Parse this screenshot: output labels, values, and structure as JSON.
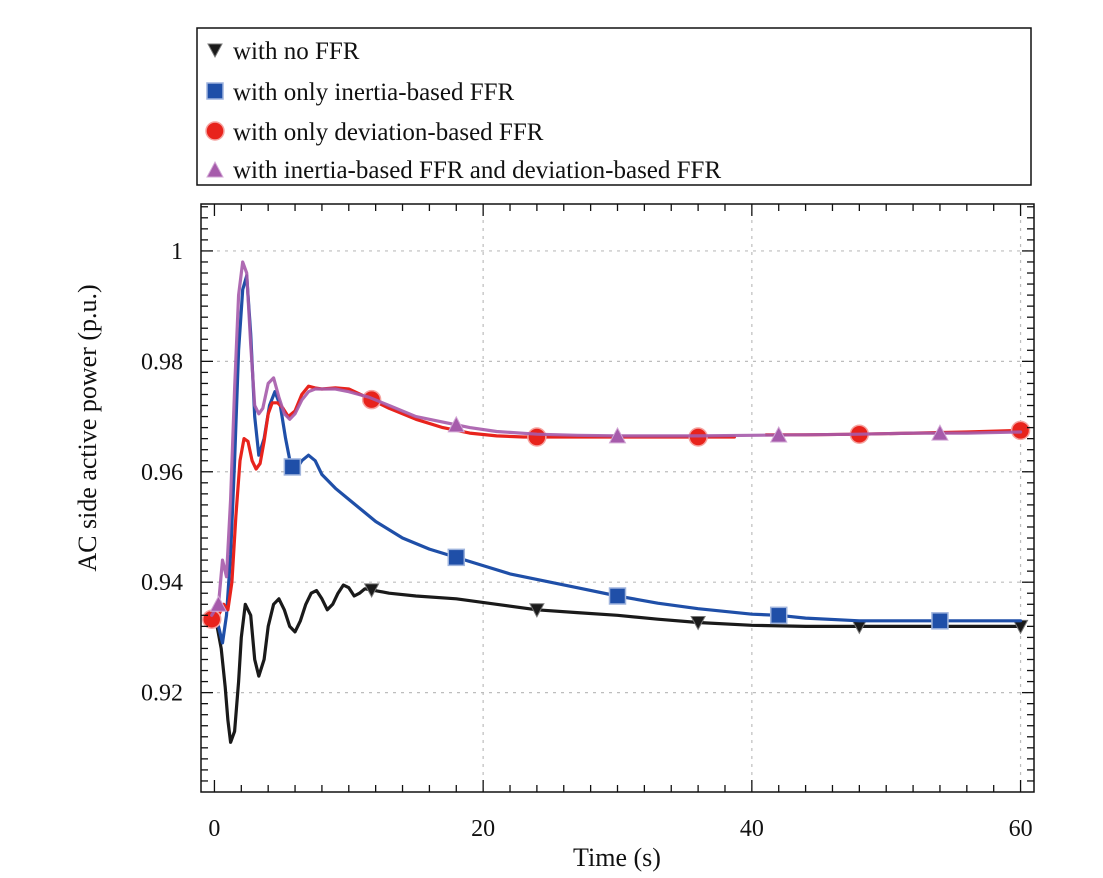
{
  "chart_data": {
    "type": "line",
    "xlabel": "Time (s)",
    "ylabel": "AC side active power (p.u.)",
    "xlim": [
      -1,
      61
    ],
    "ylim": [
      0.902,
      1.0085
    ],
    "x_ticks": [
      0,
      20,
      40,
      60
    ],
    "x_tick_labels": [
      "0",
      "20",
      "40",
      "60"
    ],
    "y_ticks": [
      0.92,
      0.94,
      0.96,
      0.98,
      1.0
    ],
    "y_tick_labels": [
      "0.92",
      "0.94",
      "0.96",
      "0.98",
      "1"
    ],
    "grid": true,
    "legend_position": "top",
    "series": [
      {
        "name": "with no FFR",
        "color": "#1a1a1a",
        "marker": "triangle-down",
        "x": [
          -0.2,
          0.2,
          0.5,
          0.8,
          1.0,
          1.2,
          1.5,
          1.8,
          2.0,
          2.3,
          2.7,
          3.0,
          3.3,
          3.7,
          4.0,
          4.4,
          4.8,
          5.2,
          5.6,
          6.0,
          6.4,
          6.8,
          7.2,
          7.6,
          8.0,
          8.4,
          8.8,
          9.2,
          9.6,
          10.0,
          10.4,
          10.8,
          11.2,
          11.7,
          13,
          15,
          18,
          21,
          24,
          27,
          30,
          33,
          36,
          40,
          44,
          48,
          52,
          56,
          60
        ],
        "y": [
          0.933,
          0.932,
          0.928,
          0.921,
          0.915,
          0.911,
          0.913,
          0.922,
          0.93,
          0.936,
          0.934,
          0.926,
          0.923,
          0.926,
          0.932,
          0.936,
          0.937,
          0.935,
          0.932,
          0.931,
          0.933,
          0.936,
          0.938,
          0.9385,
          0.937,
          0.935,
          0.936,
          0.938,
          0.9395,
          0.939,
          0.9375,
          0.938,
          0.9388,
          0.9386,
          0.938,
          0.9375,
          0.937,
          0.936,
          0.935,
          0.9345,
          0.934,
          0.9333,
          0.9327,
          0.9322,
          0.932,
          0.932,
          0.932,
          0.932,
          0.932
        ],
        "markers_at": [
          11.7,
          24,
          36,
          48,
          60
        ]
      },
      {
        "name": "with only inertia-based FFR",
        "color": "#1f4fa8",
        "marker": "square",
        "x": [
          -0.2,
          0.3,
          0.6,
          0.9,
          1.2,
          1.5,
          1.8,
          2.1,
          2.4,
          2.7,
          3.0,
          3.3,
          3.7,
          4.1,
          4.5,
          4.9,
          5.3,
          5.7,
          6.1,
          6.5,
          7.0,
          7.5,
          8.0,
          9,
          10,
          11,
          12,
          14,
          16,
          18,
          20,
          22,
          24,
          27,
          30,
          33,
          36,
          40,
          42,
          44,
          48,
          52,
          56,
          60
        ],
        "y": [
          0.933,
          0.932,
          0.929,
          0.934,
          0.945,
          0.962,
          0.982,
          0.993,
          0.9955,
          0.985,
          0.97,
          0.963,
          0.966,
          0.972,
          0.9745,
          0.972,
          0.966,
          0.961,
          0.9605,
          0.962,
          0.963,
          0.962,
          0.9595,
          0.957,
          0.955,
          0.953,
          0.951,
          0.948,
          0.946,
          0.9445,
          0.943,
          0.9415,
          0.9405,
          0.939,
          0.9375,
          0.9362,
          0.9352,
          0.9342,
          0.934,
          0.9335,
          0.933,
          0.933,
          0.933,
          0.933
        ],
        "markers_at": [
          5.8,
          18,
          30,
          42,
          54
        ]
      },
      {
        "name": "with only deviation-based FFR",
        "color": "#e8231c",
        "marker": "circle",
        "x": [
          -0.2,
          0.3,
          0.7,
          1.0,
          1.3,
          1.6,
          1.9,
          2.2,
          2.5,
          2.8,
          3.1,
          3.4,
          3.7,
          4.0,
          4.3,
          4.7,
          5.1,
          5.5,
          6.0,
          6.5,
          7.0,
          7.5,
          8,
          9,
          10,
          11.5,
          13,
          15,
          17,
          19,
          21,
          23,
          24,
          26,
          28,
          30,
          33,
          36,
          38.7
        ],
        "y": [
          0.9333,
          0.934,
          0.936,
          0.935,
          0.94,
          0.952,
          0.962,
          0.966,
          0.9655,
          0.962,
          0.9605,
          0.9615,
          0.9655,
          0.9705,
          0.9725,
          0.9725,
          0.9715,
          0.97,
          0.971,
          0.974,
          0.9755,
          0.9752,
          0.975,
          0.9752,
          0.975,
          0.9733,
          0.9715,
          0.9695,
          0.968,
          0.967,
          0.9665,
          0.9663,
          0.9663,
          0.9663,
          0.9663,
          0.9663,
          0.9663,
          0.9663,
          0.9663
        ],
        "markers_at": [
          -0.2,
          11.7,
          24,
          36
        ],
        "x2": [
          41,
          44,
          48,
          52,
          56,
          60
        ],
        "y2": [
          0.9667,
          0.9667,
          0.9668,
          0.967,
          0.9672,
          0.9675
        ],
        "markers_at2": [
          48,
          60
        ]
      },
      {
        "name": "with inertia-based FFR and deviation-based FFR",
        "color": "#a65bab",
        "marker": "triangle-up",
        "x": [
          -0.2,
          0.3,
          0.6,
          0.9,
          1.2,
          1.5,
          1.8,
          2.1,
          2.4,
          2.7,
          3.0,
          3.3,
          3.6,
          4.0,
          4.4,
          4.8,
          5.2,
          5.6,
          6.0,
          6.5,
          7.0,
          7.5,
          8,
          9,
          10,
          11.5,
          13,
          15,
          17,
          19,
          21,
          24,
          27,
          30,
          33,
          36,
          40,
          44,
          48,
          52,
          56,
          60
        ],
        "y": [
          0.934,
          0.936,
          0.944,
          0.941,
          0.955,
          0.975,
          0.992,
          0.998,
          0.996,
          0.983,
          0.972,
          0.9705,
          0.9715,
          0.976,
          0.977,
          0.9735,
          0.9705,
          0.9695,
          0.9705,
          0.973,
          0.9745,
          0.975,
          0.975,
          0.975,
          0.9745,
          0.9735,
          0.972,
          0.97,
          0.969,
          0.968,
          0.9673,
          0.9668,
          0.9666,
          0.9665,
          0.9665,
          0.9665,
          0.9666,
          0.9667,
          0.9668,
          0.967,
          0.967,
          0.9672
        ],
        "markers_at": [
          0.3,
          18,
          30,
          42,
          54
        ]
      }
    ]
  }
}
